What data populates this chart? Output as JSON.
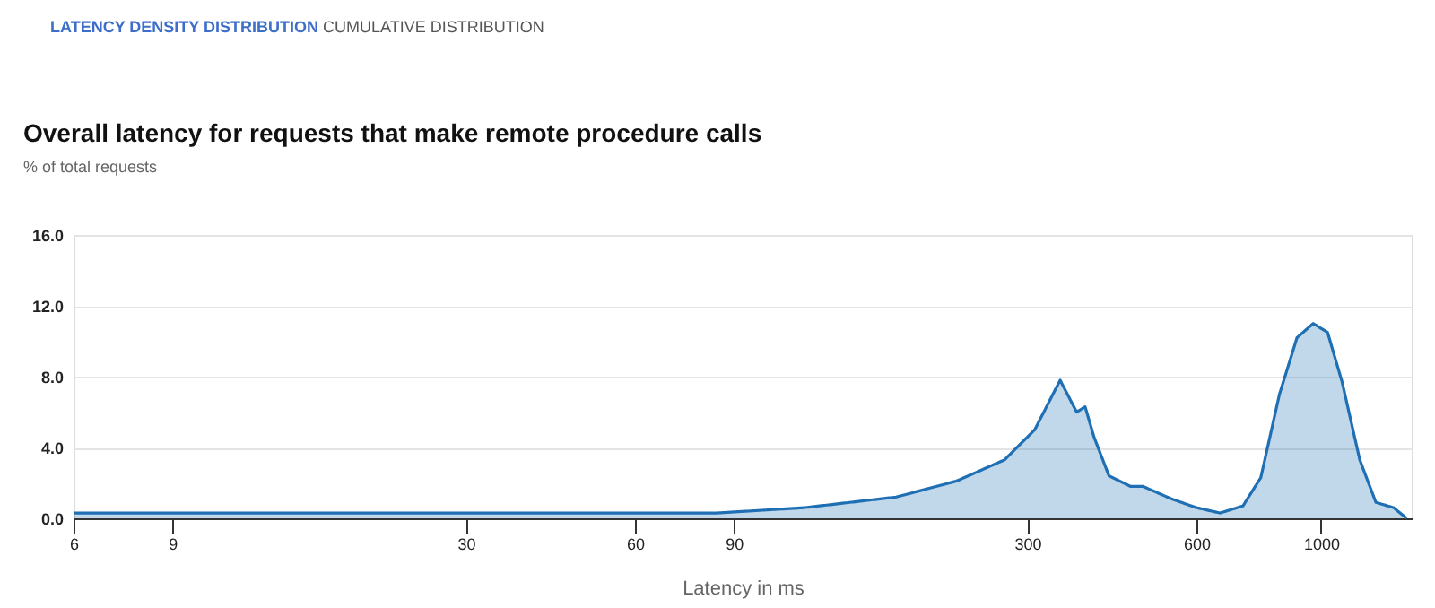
{
  "chart_data": {
    "type": "area",
    "title": "Overall latency for requests that make remote procedure calls",
    "ylabel": "% of total requests",
    "xlabel": "Latency in ms",
    "annotations": [
      "LATENCY DENSITY DISTRIBUTION",
      "CUMULATIVE DISTRIBUTION"
    ],
    "x": [
      6,
      9,
      20,
      30,
      45,
      60,
      84,
      120,
      175,
      224,
      273,
      309,
      343,
      367,
      380,
      394,
      419,
      458,
      482,
      541,
      600,
      661,
      726,
      781,
      843,
      906,
      968,
      1027,
      1090,
      1172,
      1252,
      1347,
      1420
    ],
    "series": [
      {
        "color": "#1f6fb5",
        "values": [
          0.3,
          0.3,
          0.3,
          0.3,
          0.3,
          0.3,
          0.3,
          0.6,
          1.2,
          2.1,
          3.3,
          5.0,
          7.8,
          6.0,
          6.3,
          4.6,
          2.4,
          1.8,
          1.8,
          1.1,
          0.6,
          0.3,
          0.7,
          2.3,
          7.0,
          10.2,
          11.0,
          10.5,
          7.7,
          3.3,
          0.9,
          0.6,
          0.0
        ]
      }
    ],
    "log": "x",
    "xlim": [
      6,
      1450
    ],
    "xticks": [
      6,
      9,
      30,
      60,
      90,
      300,
      600,
      {
        "value": 1000,
        "label": "1000"
      }
    ],
    "ylim": [
      0,
      16
    ],
    "yticks": [
      {
        "value": 0,
        "label": "0.0"
      },
      {
        "value": 4,
        "label": "4.0"
      },
      {
        "value": 8,
        "label": "8.0"
      },
      {
        "value": 12,
        "label": "12.0"
      },
      {
        "value": 16,
        "label": "16.0"
      }
    ],
    "grid": "y",
    "marker": "none",
    "line_style": "solid"
  }
}
